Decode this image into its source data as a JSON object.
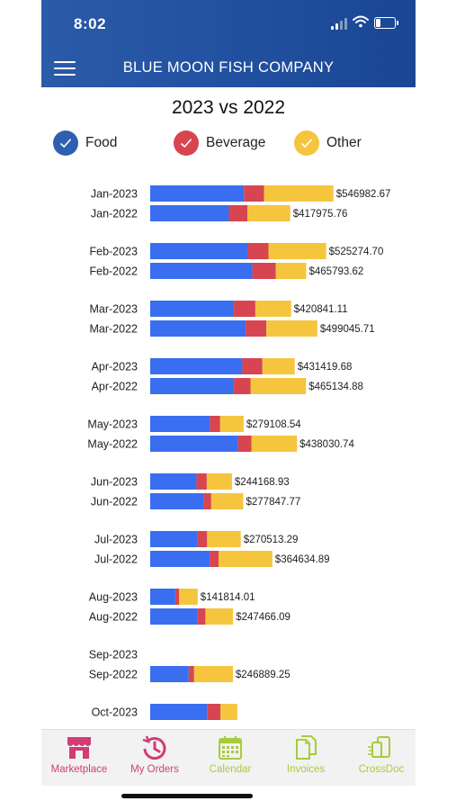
{
  "status_bar": {
    "time": "8:02"
  },
  "header": {
    "title": "BLUE MOON FISH COMPANY"
  },
  "colors": {
    "food": "#3a6ef0",
    "beverage": "#d64550",
    "other": "#f5c53e",
    "header": "#1f4f9e",
    "nav_active": "#d23c74",
    "nav_inactive": "#a6cc3c"
  },
  "chart_data": {
    "type": "bar",
    "orientation": "horizontal",
    "stacked": true,
    "title": "2023 vs 2022",
    "legend": [
      "Food",
      "Beverage",
      "Other"
    ],
    "legend_position": "top",
    "categories": [
      "Jan-2023",
      "Jan-2022",
      "Feb-2023",
      "Feb-2022",
      "Mar-2023",
      "Mar-2022",
      "Apr-2023",
      "Apr-2022",
      "May-2023",
      "May-2022",
      "Jun-2023",
      "Jun-2022",
      "Jul-2023",
      "Jul-2022",
      "Aug-2023",
      "Aug-2022",
      "Sep-2023",
      "Sep-2022",
      "Oct-2023"
    ],
    "series": [
      {
        "name": "Food",
        "values": [
          280000,
          235000,
          290000,
          305000,
          250000,
          285000,
          275000,
          250000,
          178000,
          262000,
          138000,
          160000,
          142000,
          178000,
          75000,
          140000,
          0,
          115000,
          170000
        ]
      },
      {
        "name": "Beverage",
        "values": [
          60000,
          55000,
          63000,
          70000,
          64000,
          62000,
          60000,
          50000,
          31000,
          40000,
          31000,
          22000,
          28000,
          26000,
          11000,
          25000,
          0,
          16000,
          40000
        ]
      },
      {
        "name": "Other",
        "values": [
          206982.67,
          127975.76,
          172274.7,
          90793.62,
          106841.11,
          152045.71,
          96419.68,
          165134.88,
          70108.54,
          136030.74,
          75168.93,
          95847.77,
          100513.29,
          160634.89,
          55814.01,
          82466.09,
          0,
          115889.25,
          50000
        ]
      },
      {
        "name": "Total",
        "values": [
          "$546982.67",
          "$417975.76",
          "$525274.70",
          "$465793.62",
          "$420841.11",
          "$499045.71",
          "$431419.68",
          "$465134.88",
          "$279108.54",
          "$438030.74",
          "$244168.93",
          "$277847.77",
          "$270513.29",
          "$364634.89",
          "$141814.01",
          "$247466.09",
          "",
          "$246889.25",
          ""
        ]
      }
    ],
    "xlim": [
      0,
      580000
    ]
  },
  "bottom_nav": {
    "items": [
      {
        "label": "Marketplace",
        "icon": "store-icon",
        "active": true
      },
      {
        "label": "My Orders",
        "icon": "history-icon",
        "active": true
      },
      {
        "label": "Calendar",
        "icon": "calendar-icon",
        "active": false
      },
      {
        "label": "Invoices",
        "icon": "documents-icon",
        "active": false
      },
      {
        "label": "CrossDoc",
        "icon": "crossdoc-icon",
        "active": false
      }
    ]
  }
}
